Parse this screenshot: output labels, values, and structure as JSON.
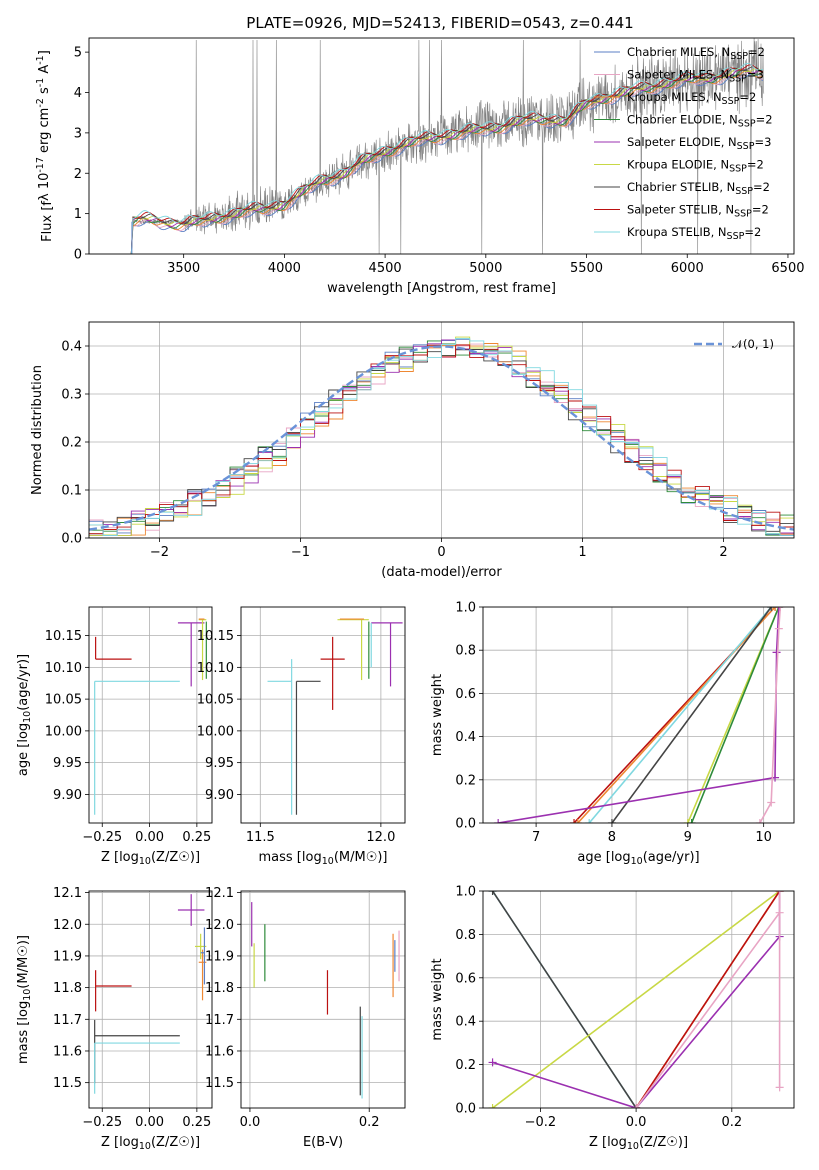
{
  "figure": {
    "title": "PLATE=0926, MJD=52413, FIBERID=0543, z=0.441"
  },
  "colors": {
    "Chabrier MILES": "#5b7fc4",
    "Salpeter MILES": "#e8a5c4",
    "Kroupa MILES": "#ee8833",
    "Chabrier ELODIE": "#2e8b3a",
    "Salpeter ELODIE": "#9b30b0",
    "Kroupa ELODIE": "#c8d845",
    "Chabrier STELIB": "#444444",
    "Salpeter STELIB": "#bb1111",
    "Kroupa STELIB": "#80d8e0",
    "data": "#808080",
    "gaussian": "#6a93d8",
    "grid": "#b0b0b0"
  },
  "chart_data": [
    {
      "id": "spectrum",
      "type": "line",
      "title": "PLATE=0926, MJD=52413, FIBERID=0543, z=0.441",
      "xlabel": "wavelength [Angstrom, rest frame]",
      "ylabel": "Flux [f_λ 10^-17 erg cm^-2 s^-1 A^-1]",
      "xlim": [
        3030,
        6530
      ],
      "ylim": [
        0,
        5.35
      ],
      "xticks": [
        3500,
        4000,
        4500,
        5000,
        5500,
        6000,
        6500
      ],
      "yticks": [
        0,
        1,
        2,
        3,
        4,
        5
      ],
      "grid": false,
      "legend_position": "top-right",
      "legend": [
        "Chabrier MILES, N_SSP=2",
        "Salpeter MILES, N_SSP=3",
        "Kroupa MILES, N_SSP=2",
        "Chabrier ELODIE, N_SSP=2",
        "Salpeter ELODIE, N_SSP=3",
        "Kroupa ELODIE, N_SSP=2",
        "Chabrier STELIB, N_SSP=2",
        "Salpeter STELIB, N_SSP=2",
        "Kroupa STELIB, N_SSP=2"
      ],
      "model_continuum": {
        "x": [
          3240,
          3300,
          3400,
          3500,
          3600,
          3700,
          3800,
          3900,
          4000,
          4100,
          4200,
          4300,
          4400,
          4500,
          4600,
          4700,
          4800,
          4900,
          5000,
          5100,
          5200,
          5300,
          5400,
          5500,
          5600,
          5700,
          5800,
          5900,
          6000,
          6100,
          6200,
          6300,
          6380
        ],
        "y": [
          0.8,
          0.85,
          0.8,
          0.75,
          0.8,
          0.95,
          1.05,
          1.1,
          1.25,
          1.55,
          1.85,
          2.0,
          2.3,
          2.55,
          2.7,
          2.85,
          2.95,
          3.0,
          3.1,
          3.2,
          3.3,
          3.35,
          3.3,
          3.7,
          3.9,
          4.0,
          4.1,
          4.25,
          4.3,
          4.35,
          4.45,
          4.5,
          4.5
        ]
      },
      "data_envelope": {
        "x": [
          3250,
          3500,
          3600,
          3700,
          3800,
          3900,
          4000,
          4200,
          4400,
          4600,
          4800,
          5000,
          5200,
          5400,
          5600,
          5800,
          6000,
          6200,
          6380
        ],
        "y": [
          0.8,
          0.8,
          0.85,
          1.0,
          1.05,
          1.15,
          1.25,
          1.8,
          2.3,
          2.7,
          2.9,
          3.2,
          3.3,
          3.4,
          3.9,
          4.1,
          4.35,
          4.5,
          4.5
        ],
        "noise": [
          0.05,
          0.3,
          0.5,
          0.55,
          0.6,
          0.6,
          0.45,
          0.5,
          0.6,
          0.6,
          0.65,
          0.75,
          0.75,
          0.8,
          0.85,
          0.95,
          1.0,
          1.05,
          1.1
        ]
      }
    },
    {
      "id": "residuals",
      "type": "line",
      "xlabel": "(data-model)/error",
      "ylabel": "Normed distribution",
      "xlim": [
        -2.5,
        2.5
      ],
      "ylim": [
        0,
        0.45
      ],
      "xticks": [
        -2,
        -1,
        0,
        1,
        2
      ],
      "yticks": [
        0.0,
        0.1,
        0.2,
        0.3,
        0.4
      ],
      "grid": true,
      "legend_position": "top-right",
      "legend": [
        "𝒩(0, 1)"
      ],
      "bin_width": 0.1,
      "gaussian": {
        "mean": 0,
        "sigma": 1
      }
    },
    {
      "id": "age-vs-Z",
      "type": "scatter",
      "xlabel": "Z [log10(Z/Z☉)]",
      "ylabel": "age  [log10(age/yr)]",
      "xlim": [
        -0.32,
        0.33
      ],
      "ylim": [
        9.855,
        10.195
      ],
      "xticks": [
        -0.25,
        0.0,
        0.25
      ],
      "xtick_labels": [
        "−0.25",
        "0.00",
        "0.25"
      ],
      "yticks": [
        9.9,
        9.95,
        10.0,
        10.05,
        10.1,
        10.15
      ],
      "grid": true,
      "points": [
        {
          "model": "Salpeter STELIB",
          "x": -0.285,
          "xerr": [
            0.0,
            0.19
          ],
          "y": 10.113,
          "yerr": [
            0.0,
            0.035
          ]
        },
        {
          "model": "Kroupa STELIB",
          "x": -0.29,
          "xerr": [
            0.0,
            0.45
          ],
          "y": 10.078,
          "yerr": [
            0.21,
            0.0
          ]
        },
        {
          "model": "Salpeter ELODIE",
          "x": 0.22,
          "xerr": [
            0.07,
            0.07
          ],
          "y": 10.17,
          "yerr": [
            0.1,
            0.0
          ]
        },
        {
          "model": "Kroupa ELODIE",
          "x": 0.28,
          "xerr": [
            0.02,
            0.02
          ],
          "y": 10.175,
          "yerr": [
            0.095,
            0.0
          ]
        },
        {
          "model": "Kroupa MILES",
          "x": 0.29,
          "xerr": [
            0.03,
            0.0
          ],
          "y": 10.176,
          "yerr": [
            0.0,
            0.0
          ]
        },
        {
          "model": "Chabrier ELODIE",
          "x": 0.3,
          "xerr": [
            0.0,
            0.0
          ],
          "y": 10.172,
          "yerr": [
            0.09,
            0.0
          ]
        }
      ]
    },
    {
      "id": "age-vs-mass",
      "type": "scatter",
      "xlabel": "mass [log10(M/M☉)]",
      "ylabel": "",
      "xlim": [
        11.42,
        12.1
      ],
      "ylim": [
        9.855,
        10.195
      ],
      "xticks": [
        11.5,
        12.0
      ],
      "yticks": [
        9.9,
        9.95,
        10.0,
        10.05,
        10.1,
        10.15
      ],
      "grid": true,
      "points": [
        {
          "model": "Salpeter STELIB",
          "x": 11.8,
          "xerr": [
            0.05,
            0.05
          ],
          "y": 10.113,
          "yerr": [
            0.08,
            0.035
          ]
        },
        {
          "model": "Kroupa STELIB",
          "x": 11.63,
          "xerr": [
            0.1,
            0.0
          ],
          "y": 10.078,
          "yerr": [
            0.21,
            0.035
          ]
        },
        {
          "model": "Chabrier STELIB",
          "x": 11.65,
          "xerr": [
            0.0,
            0.1
          ],
          "y": 10.078,
          "yerr": [
            0.21,
            0.0
          ]
        },
        {
          "model": "Salpeter ELODIE",
          "x": 12.04,
          "xerr": [
            0.08,
            0.05
          ],
          "y": 10.17,
          "yerr": [
            0.1,
            0.0
          ]
        },
        {
          "model": "Kroupa ELODIE",
          "x": 11.92,
          "xerr": [
            0.1,
            0.03
          ],
          "y": 10.175,
          "yerr": [
            0.095,
            0.0
          ]
        },
        {
          "model": "Kroupa MILES",
          "x": 11.88,
          "xerr": [
            0.05,
            0.05
          ],
          "y": 10.176,
          "yerr": [
            0.0,
            0.0
          ]
        },
        {
          "model": "Chabrier ELODIE",
          "x": 11.95,
          "xerr": [
            0.0,
            0.0
          ],
          "y": 10.172,
          "yerr": [
            0.09,
            0.0
          ]
        },
        {
          "model": "Kroupa STELIB",
          "x": 11.96,
          "xerr": [
            0.0,
            0.0
          ],
          "y": 10.17,
          "yerr": [
            0.07,
            0.0
          ]
        }
      ]
    },
    {
      "id": "weight-vs-age",
      "type": "line",
      "xlabel": "age  [log10(age/yr)]",
      "ylabel": "mass weight",
      "xlim": [
        6.3,
        10.4
      ],
      "ylim": [
        0,
        1
      ],
      "xticks": [
        7,
        8,
        9,
        10
      ],
      "yticks": [
        0.0,
        0.2,
        0.4,
        0.6,
        0.8,
        1.0
      ],
      "grid": true,
      "cumulative": [
        {
          "model": "Salpeter STELIB",
          "x": [
            7.5,
            10.15
          ],
          "y": [
            0.0,
            1.0
          ]
        },
        {
          "model": "Kroupa MILES",
          "x": [
            7.55,
            10.15
          ],
          "y": [
            0.0,
            1.0
          ]
        },
        {
          "model": "Kroupa STELIB",
          "x": [
            7.7,
            10.1
          ],
          "y": [
            0.0,
            1.0
          ]
        },
        {
          "model": "Chabrier STELIB",
          "x": [
            8.0,
            10.1
          ],
          "y": [
            0.0,
            1.0
          ]
        },
        {
          "model": "Kroupa ELODIE",
          "x": [
            9.0,
            10.2
          ],
          "y": [
            0.0,
            1.0
          ]
        },
        {
          "model": "Chabrier ELODIE",
          "x": [
            9.05,
            10.2
          ],
          "y": [
            0.0,
            1.0
          ]
        },
        {
          "model": "Salpeter ELODIE",
          "x": [
            6.5,
            10.15,
            10.17,
            10.2
          ],
          "y": [
            0.0,
            0.21,
            0.79,
            1.0
          ]
        },
        {
          "model": "Salpeter MILES",
          "x": [
            9.95,
            10.1,
            10.2,
            10.22
          ],
          "y": [
            0.0,
            0.095,
            0.9,
            1.0
          ]
        }
      ]
    },
    {
      "id": "mass-vs-Z",
      "type": "scatter",
      "xlabel": "Z [log10(Z/Z☉)]",
      "ylabel": "mass [log10(M/M☉)]",
      "xlim": [
        -0.32,
        0.33
      ],
      "ylim": [
        11.42,
        12.105
      ],
      "xticks": [
        -0.25,
        0.0,
        0.25
      ],
      "xtick_labels": [
        "−0.25",
        "0.00",
        "0.25"
      ],
      "yticks": [
        11.5,
        11.6,
        11.7,
        11.8,
        11.9,
        12.0,
        12.1
      ],
      "grid": true,
      "points": [
        {
          "model": "Salpeter STELIB",
          "x": -0.285,
          "xerr": [
            0.0,
            0.19
          ],
          "y": 11.805,
          "yerr": [
            0.08,
            0.05
          ]
        },
        {
          "model": "Chabrier STELIB",
          "x": -0.29,
          "xerr": [
            0.0,
            0.45
          ],
          "y": 11.648,
          "yerr": [
            0.15,
            0.05
          ]
        },
        {
          "model": "Kroupa STELIB",
          "x": -0.29,
          "xerr": [
            0.0,
            0.45
          ],
          "y": 11.625,
          "yerr": [
            0.16,
            0.0
          ]
        },
        {
          "model": "Salpeter ELODIE",
          "x": 0.22,
          "xerr": [
            0.07,
            0.07
          ],
          "y": 12.045,
          "yerr": [
            0.05,
            0.05
          ]
        },
        {
          "model": "Kroupa ELODIE",
          "x": 0.27,
          "xerr": [
            0.03,
            0.03
          ],
          "y": 11.93,
          "yerr": [
            0.04,
            0.04
          ]
        },
        {
          "model": "Kroupa MILES",
          "x": 0.28,
          "xerr": [
            0.02,
            0.02
          ],
          "y": 11.88,
          "yerr": [
            0.12,
            0.04
          ]
        },
        {
          "model": "Chabrier MILES",
          "x": 0.29,
          "xerr": [
            0.02,
            0.0
          ],
          "y": 11.91,
          "yerr": [
            0.1,
            0.08
          ]
        }
      ]
    },
    {
      "id": "mass-vs-ebv",
      "type": "scatter",
      "xlabel": "E(B-V)",
      "ylabel": "",
      "xlim": [
        -0.015,
        0.26
      ],
      "ylim": [
        11.42,
        12.105
      ],
      "xticks": [
        0.0,
        0.2
      ],
      "yticks": [
        11.5,
        11.6,
        11.7,
        11.8,
        11.9,
        12.0,
        12.1
      ],
      "grid": true,
      "points": [
        {
          "model": "Salpeter ELODIE",
          "x": 0.003,
          "xerr": [
            0,
            0
          ],
          "y": 12.0,
          "yerr": [
            0.07,
            0.07
          ]
        },
        {
          "model": "Kroupa ELODIE",
          "x": 0.007,
          "xerr": [
            0,
            0
          ],
          "y": 11.87,
          "yerr": [
            0.07,
            0.07
          ]
        },
        {
          "model": "Chabrier ELODIE",
          "x": 0.025,
          "xerr": [
            0,
            0
          ],
          "y": 11.91,
          "yerr": [
            0.09,
            0.09
          ]
        },
        {
          "model": "Salpeter STELIB",
          "x": 0.13,
          "xerr": [
            0,
            0
          ],
          "y": 11.785,
          "yerr": [
            0.07,
            0.07
          ]
        },
        {
          "model": "Chabrier STELIB",
          "x": 0.185,
          "xerr": [
            0,
            0
          ],
          "y": 11.6,
          "yerr": [
            0.14,
            0.14
          ]
        },
        {
          "model": "Kroupa STELIB",
          "x": 0.188,
          "xerr": [
            0,
            0
          ],
          "y": 11.58,
          "yerr": [
            0.13,
            0.13
          ]
        },
        {
          "model": "Kroupa MILES",
          "x": 0.24,
          "xerr": [
            0,
            0
          ],
          "y": 11.87,
          "yerr": [
            0.1,
            0.1
          ]
        },
        {
          "model": "Chabrier MILES",
          "x": 0.243,
          "xerr": [
            0,
            0
          ],
          "y": 11.9,
          "yerr": [
            0.05,
            0.05
          ]
        },
        {
          "model": "Salpeter MILES",
          "x": 0.25,
          "xerr": [
            0,
            0
          ],
          "y": 11.9,
          "yerr": [
            0.08,
            0.08
          ]
        }
      ]
    },
    {
      "id": "weight-vs-Z",
      "type": "line",
      "xlabel": "Z [log10(Z/Z☉)]",
      "ylabel": "mass weight",
      "xlim": [
        -0.32,
        0.33
      ],
      "ylim": [
        0,
        1
      ],
      "xticks": [
        -0.2,
        0.0,
        0.2
      ],
      "xtick_labels": [
        "−0.2",
        "0.0",
        "0.2"
      ],
      "yticks": [
        0.0,
        0.2,
        0.4,
        0.6,
        0.8,
        1.0
      ],
      "grid": true,
      "cumulative": [
        {
          "model": "Kroupa STELIB",
          "x": [
            -0.3,
            0.0
          ],
          "y": [
            1.0,
            0.0
          ]
        },
        {
          "model": "Chabrier STELIB",
          "x": [
            -0.3,
            0.0
          ],
          "y": [
            1.0,
            0.0
          ]
        },
        {
          "model": "Kroupa ELODIE",
          "x": [
            -0.3,
            0.3
          ],
          "y": [
            0.0,
            1.0
          ]
        },
        {
          "model": "Kroupa MILES",
          "x": [
            0.0,
            0.3
          ],
          "y": [
            0.0,
            1.0
          ]
        },
        {
          "model": "Salpeter STELIB",
          "x": [
            0.0,
            0.3
          ],
          "y": [
            0.0,
            1.0
          ]
        },
        {
          "model": "Salpeter ELODIE",
          "x": [
            -0.3,
            0.0,
            0.3,
            0.3
          ],
          "y": [
            0.21,
            0.0,
            0.79,
            1.0
          ]
        },
        {
          "model": "Salpeter MILES",
          "x": [
            0.0,
            0.3,
            0.3,
            0.3
          ],
          "y": [
            0.0,
            0.9,
            0.095,
            1.0
          ]
        }
      ]
    }
  ]
}
